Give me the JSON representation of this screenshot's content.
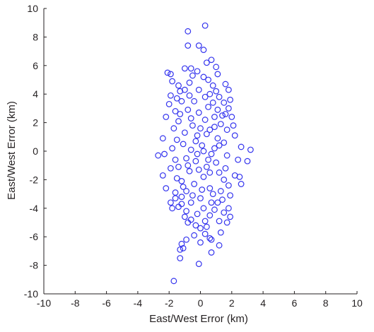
{
  "chart_data": {
    "type": "scatter",
    "title": "",
    "xlabel": "East/West Error (km)",
    "ylabel": "East/West Error (km)",
    "xlim": [
      -10,
      10
    ],
    "ylim": [
      -10,
      10
    ],
    "x_ticks": [
      -10,
      -8,
      -6,
      -4,
      -2,
      0,
      2,
      4,
      6,
      8,
      10
    ],
    "y_ticks": [
      -10,
      -8,
      -6,
      -4,
      -2,
      0,
      2,
      4,
      6,
      8,
      10
    ],
    "grid": false,
    "legend": "none",
    "marker": "circle-open",
    "colors": {
      "marker": "#3333ee",
      "axis": "#231f20"
    },
    "series": [
      {
        "points": [
          [
            0.3,
            8.8
          ],
          [
            -0.8,
            8.4
          ],
          [
            -0.8,
            7.4
          ],
          [
            -0.1,
            7.4
          ],
          [
            0.2,
            7.1
          ],
          [
            -2.1,
            5.5
          ],
          [
            -1.9,
            5.4
          ],
          [
            -1.0,
            5.8
          ],
          [
            -0.6,
            5.8
          ],
          [
            0.4,
            6.2
          ],
          [
            0.7,
            6.4
          ],
          [
            1.0,
            5.9
          ],
          [
            1.1,
            5.4
          ],
          [
            -1.8,
            4.9
          ],
          [
            -1.4,
            4.6
          ],
          [
            -1.3,
            4.2
          ],
          [
            -1.9,
            3.9
          ],
          [
            -2.0,
            3.3
          ],
          [
            -1.6,
            2.8
          ],
          [
            -2.2,
            2.4
          ],
          [
            1.6,
            4.7
          ],
          [
            1.8,
            4.3
          ],
          [
            1.9,
            3.6
          ],
          [
            1.8,
            3.0
          ],
          [
            2.0,
            2.4
          ],
          [
            2.1,
            1.8
          ],
          [
            2.2,
            1.1
          ],
          [
            2.6,
            0.3
          ],
          [
            3.2,
            0.1
          ],
          [
            3.0,
            -0.7
          ],
          [
            2.4,
            -0.6
          ],
          [
            -2.4,
            0.9
          ],
          [
            -2.7,
            -0.3
          ],
          [
            -2.3,
            -0.2
          ],
          [
            -2.4,
            -1.7
          ],
          [
            -2.2,
            -2.6
          ],
          [
            -1.9,
            -3.6
          ],
          [
            -1.8,
            -4.0
          ],
          [
            -1.4,
            -3.9
          ],
          [
            -1.6,
            -3.3
          ],
          [
            2.2,
            -1.7
          ],
          [
            1.8,
            -2.4
          ],
          [
            2.6,
            -2.3
          ],
          [
            2.5,
            -1.8
          ],
          [
            1.9,
            -3.1
          ],
          [
            1.8,
            -4.0
          ],
          [
            1.9,
            -4.6
          ],
          [
            1.7,
            -5.0
          ],
          [
            1.3,
            -5.7
          ],
          [
            1.2,
            -6.6
          ],
          [
            0.7,
            -6.2
          ],
          [
            0.3,
            -5.8
          ],
          [
            0.6,
            -6.1
          ],
          [
            -0.4,
            -5.9
          ],
          [
            -0.9,
            -6.2
          ],
          [
            -1.2,
            -6.5
          ],
          [
            -1.1,
            -6.8
          ],
          [
            -1.3,
            -6.9
          ],
          [
            -0.8,
            -5.0
          ],
          [
            -1.0,
            -4.6
          ],
          [
            0.7,
            -7.1
          ],
          [
            -1.3,
            -7.5
          ],
          [
            -0.1,
            -7.9
          ],
          [
            -1.7,
            -9.1
          ],
          [
            -1.5,
            3.7
          ],
          [
            -1.4,
            2.1
          ],
          [
            -1.7,
            1.6
          ],
          [
            -1.5,
            0.8
          ],
          [
            -1.8,
            0.2
          ],
          [
            -1.6,
            -0.6
          ],
          [
            -1.9,
            -1.2
          ],
          [
            -1.5,
            -1.9
          ],
          [
            -1.6,
            -2.9
          ],
          [
            -1.2,
            -3.2
          ],
          [
            1.5,
            3.4
          ],
          [
            1.6,
            2.6
          ],
          [
            1.7,
            1.5
          ],
          [
            1.5,
            0.6
          ],
          [
            1.7,
            -0.3
          ],
          [
            1.6,
            -1.2
          ],
          [
            1.5,
            -2.0
          ],
          [
            1.4,
            -3.4
          ],
          [
            1.5,
            -4.3
          ],
          [
            1.2,
            -4.9
          ],
          [
            -1.0,
            4.3
          ],
          [
            -0.7,
            4.8
          ],
          [
            -0.5,
            5.3
          ],
          [
            -0.2,
            5.6
          ],
          [
            0.2,
            5.2
          ],
          [
            0.5,
            5.0
          ],
          [
            0.8,
            4.6
          ],
          [
            1.0,
            4.2
          ],
          [
            1.2,
            3.8
          ],
          [
            -1.2,
            3.5
          ],
          [
            -0.9,
            -4.2
          ],
          [
            -0.6,
            -4.8
          ],
          [
            -0.3,
            -5.2
          ],
          [
            0.0,
            -5.4
          ],
          [
            0.3,
            -4.9
          ],
          [
            0.6,
            -4.5
          ],
          [
            0.9,
            -4.1
          ],
          [
            1.1,
            -3.6
          ],
          [
            -1.2,
            -3.7
          ],
          [
            0.0,
            -6.4
          ],
          [
            -0.5,
            1.8
          ],
          [
            0.3,
            2.2
          ],
          [
            0.6,
            1.5
          ],
          [
            -0.2,
            1.1
          ],
          [
            0.1,
            0.4
          ],
          [
            -0.6,
            0.1
          ],
          [
            0.7,
            -0.2
          ],
          [
            -0.3,
            -0.7
          ],
          [
            0.4,
            -1.1
          ],
          [
            -0.7,
            -1.4
          ],
          [
            0.2,
            -1.8
          ],
          [
            -0.1,
            2.7
          ],
          [
            0.5,
            3.1
          ],
          [
            -0.8,
            2.9
          ],
          [
            0.9,
            2.4
          ],
          [
            -1.0,
            1.3
          ],
          [
            1.1,
            0.9
          ],
          [
            -0.9,
            -0.5
          ],
          [
            1.0,
            -0.8
          ],
          [
            -0.4,
            -2.3
          ],
          [
            0.6,
            -2.6
          ],
          [
            -0.9,
            -2.8
          ],
          [
            0.8,
            -3.0
          ],
          [
            0.0,
            -3.3
          ],
          [
            -0.4,
            3.5
          ],
          [
            0.3,
            3.8
          ],
          [
            -0.1,
            4.3
          ],
          [
            0.6,
            4.0
          ],
          [
            -0.6,
            -3.6
          ],
          [
            0.2,
            -4.0
          ],
          [
            -1.1,
            0.5
          ],
          [
            1.2,
            -1.5
          ],
          [
            -1.2,
            -2.1
          ],
          [
            1.3,
            1.9
          ],
          [
            -1.3,
            2.6
          ],
          [
            1.1,
            2.9
          ],
          [
            -0.3,
            0.7
          ],
          [
            0.4,
            1.2
          ],
          [
            0.9,
            0.2
          ],
          [
            -0.8,
            -1.0
          ],
          [
            0.5,
            -0.6
          ],
          [
            0.1,
            -2.7
          ],
          [
            -0.5,
            -3.1
          ],
          [
            0.7,
            -3.6
          ],
          [
            -0.2,
            -4.4
          ],
          [
            0.4,
            -5.3
          ],
          [
            1.4,
            2.5
          ],
          [
            -1.4,
            -1.1
          ],
          [
            0.8,
            3.4
          ],
          [
            -0.7,
            3.9
          ],
          [
            0.0,
            1.6
          ],
          [
            0.2,
            0.0
          ],
          [
            -0.1,
            -1.3
          ],
          [
            1.3,
            -2.8
          ],
          [
            -1.1,
            -2.5
          ],
          [
            0.9,
            1.7
          ],
          [
            -0.6,
            2.3
          ],
          [
            0.6,
            -1.5
          ],
          [
            -0.2,
            -0.2
          ],
          [
            1.2,
            0.4
          ]
        ]
      }
    ]
  }
}
